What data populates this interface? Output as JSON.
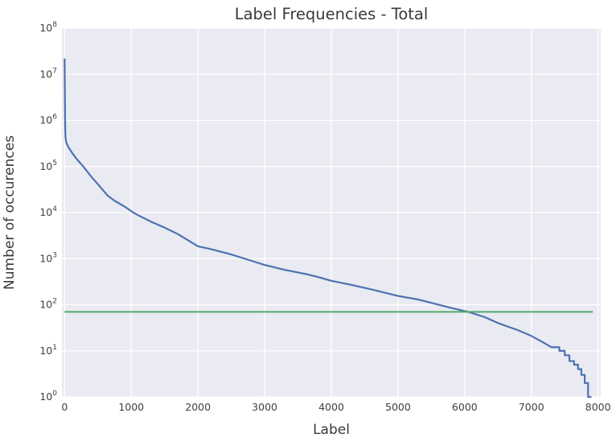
{
  "figure": {
    "kind": "matplotlib-seaborn-line-chart"
  },
  "chart_data": {
    "type": "line",
    "title": "Label Frequencies - Total",
    "xlabel": "Label",
    "ylabel": "Number of occurences",
    "x_ticks": [
      0,
      1000,
      2000,
      3000,
      4000,
      5000,
      6000,
      7000,
      8000
    ],
    "y_scale": "log",
    "y_tick_exponents": [
      0,
      1,
      2,
      3,
      4,
      5,
      6,
      7,
      8
    ],
    "ylim": [
      1,
      100000000
    ],
    "x_data_range": [
      0,
      7900
    ],
    "grid": true,
    "legend_position": "none",
    "background_color": "#EAEAF2",
    "grid_color": "#FFFFFF",
    "series": [
      {
        "name": "label-frequency-curve",
        "color": "#4C72B0",
        "points": [
          [
            0,
            22000000
          ],
          [
            2,
            10000000
          ],
          [
            4,
            4500000
          ],
          [
            6,
            2000000
          ],
          [
            8,
            1000000
          ],
          [
            10,
            600000
          ],
          [
            14,
            420000
          ],
          [
            25,
            330000
          ],
          [
            60,
            260000
          ],
          [
            120,
            190000
          ],
          [
            200,
            135000
          ],
          [
            280,
            100000
          ],
          [
            400,
            60000
          ],
          [
            500,
            41000
          ],
          [
            650,
            23000
          ],
          [
            750,
            18000
          ],
          [
            900,
            13500
          ],
          [
            1030,
            10000
          ],
          [
            1100,
            8800
          ],
          [
            1300,
            6300
          ],
          [
            1500,
            4700
          ],
          [
            1700,
            3400
          ],
          [
            2000,
            1850
          ],
          [
            2200,
            1600
          ],
          [
            2500,
            1230
          ],
          [
            2800,
            900
          ],
          [
            3000,
            730
          ],
          [
            3300,
            570
          ],
          [
            3600,
            470
          ],
          [
            3800,
            400
          ],
          [
            4000,
            330
          ],
          [
            4300,
            270
          ],
          [
            4600,
            215
          ],
          [
            5000,
            155
          ],
          [
            5300,
            130
          ],
          [
            5500,
            110
          ],
          [
            5800,
            85
          ],
          [
            6050,
            70
          ],
          [
            6300,
            54
          ],
          [
            6500,
            40
          ],
          [
            6800,
            28
          ],
          [
            7000,
            21
          ],
          [
            7150,
            16
          ],
          [
            7300,
            12
          ],
          [
            7420,
            10
          ],
          [
            7500,
            8
          ],
          [
            7570,
            6
          ],
          [
            7640,
            5
          ],
          [
            7700,
            4
          ],
          [
            7750,
            3
          ],
          [
            7800,
            2
          ],
          [
            7850,
            1
          ],
          [
            7900,
            1
          ]
        ],
        "step_below_count": 13
      },
      {
        "name": "threshold-line",
        "color": "#55A868",
        "value": 70,
        "x_start": 0,
        "x_end": 7920
      }
    ]
  }
}
